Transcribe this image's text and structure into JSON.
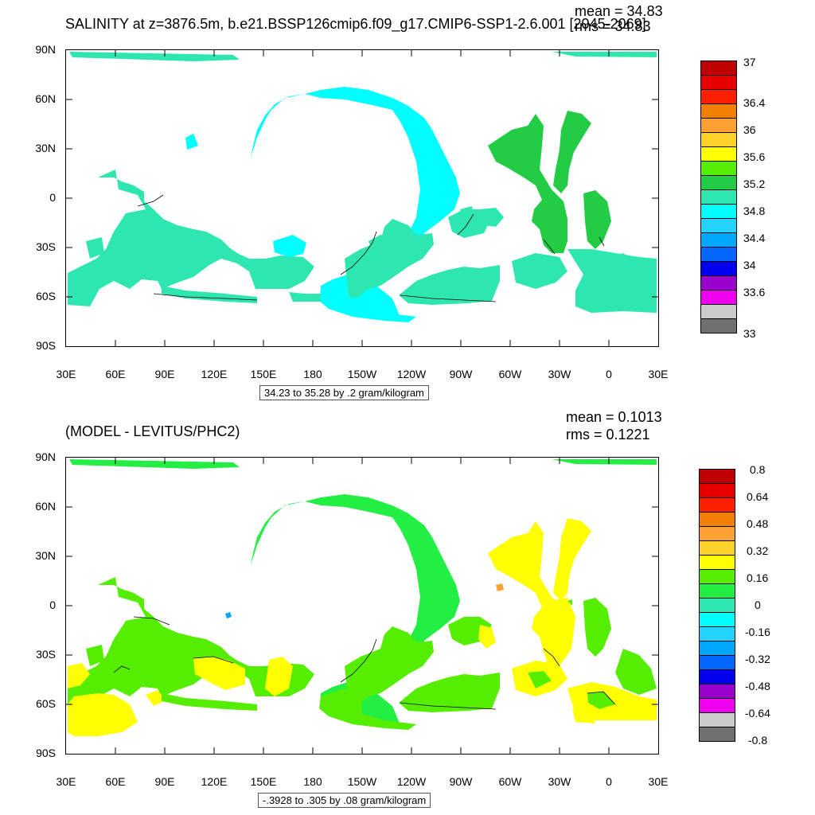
{
  "panels": [
    {
      "title": "SALINITY at z=3876.5m, b.e21.BSSP126cmip6.f09_g17.CMIP6-SSP1-2.6.001 [2045-2069]",
      "mean_label": "mean = 34.83",
      "rms_label": "rms = 34.83",
      "contour_info": "34.23 to 35.28 by .2 gram/kilogram",
      "lat_labels": [
        "90N",
        "60N",
        "30N",
        "0",
        "30S",
        "60S",
        "90S"
      ],
      "lon_labels": [
        "30E",
        "60E",
        "90E",
        "120E",
        "150E",
        "180",
        "150W",
        "120W",
        "90W",
        "60W",
        "30W",
        "0",
        "30E"
      ],
      "colorbar": {
        "colors": [
          "#c00000",
          "#e60000",
          "#ff2000",
          "#f28000",
          "#ffa033",
          "#ffd22a",
          "#ffff00",
          "#55ee00",
          "#22cc44",
          "#2ee6b0",
          "#00ffff",
          "#22d4ff",
          "#00a8ff",
          "#0066ff",
          "#0000ee",
          "#9900cc",
          "#ee00ee",
          "#cccccc",
          "#707070"
        ],
        "labels": [
          "37",
          "36.4",
          "36",
          "35.6",
          "35.2",
          "34.8",
          "34.4",
          "34",
          "33.6",
          "33"
        ]
      }
    },
    {
      "title": "(MODEL - LEVITUS/PHC2)",
      "mean_label": "mean = 0.1013",
      "rms_label": "rms = 0.1221",
      "contour_info": "-.3928 to .305 by .08 gram/kilogram",
      "lat_labels": [
        "90N",
        "60N",
        "30N",
        "0",
        "30S",
        "60S",
        "90S"
      ],
      "lon_labels": [
        "30E",
        "60E",
        "90E",
        "120E",
        "150E",
        "180",
        "150W",
        "120W",
        "90W",
        "60W",
        "30W",
        "0",
        "30E"
      ],
      "colorbar": {
        "colors": [
          "#c00000",
          "#e60000",
          "#ff2000",
          "#f28000",
          "#ffa033",
          "#ffd22a",
          "#ffff00",
          "#55ee00",
          "#22ee44",
          "#2ee6b0",
          "#00ffff",
          "#22d4ff",
          "#00a8ff",
          "#0066ff",
          "#0000ee",
          "#9900cc",
          "#ee00ee",
          "#cccccc",
          "#707070"
        ],
        "labels": [
          "0.8",
          "0.64",
          "0.48",
          "0.32",
          "0.16",
          "0",
          "-0.16",
          "-0.32",
          "-0.48",
          "-0.64",
          "-0.8"
        ]
      }
    }
  ]
}
